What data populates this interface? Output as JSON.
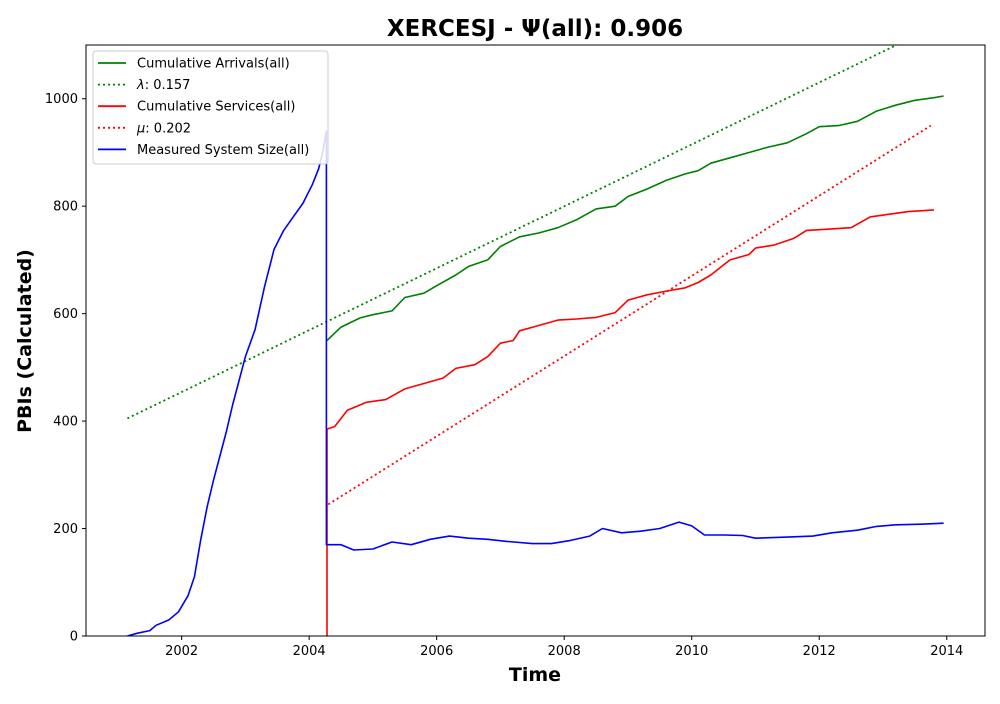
{
  "chart_data": {
    "type": "line",
    "title": "XERCESJ -  Ψ(all): 0.906",
    "xlabel": "Time",
    "ylabel": "PBIs (Calculated)",
    "xlim": [
      2000.5,
      2014.6
    ],
    "ylim": [
      0,
      1100
    ],
    "x_ticks": [
      2002,
      2004,
      2006,
      2008,
      2010,
      2012,
      2014
    ],
    "y_ticks": [
      0,
      200,
      400,
      600,
      800,
      1000
    ],
    "grid": false,
    "legend_placement": "top-left",
    "legend": [
      {
        "label": "Cumulative Arrivals(all)",
        "color": "#008000",
        "style": "solid"
      },
      {
        "label_symbol": "λ",
        "label_value": ": 0.157",
        "color": "#008000",
        "style": "dotted"
      },
      {
        "label": "Cumulative Services(all)",
        "color": "#ff0000",
        "style": "solid"
      },
      {
        "label_symbol": "μ",
        "label_value": ": 0.202",
        "color": "#ff0000",
        "style": "dotted"
      },
      {
        "label": "Measured System Size(all)",
        "color": "#0000ff",
        "style": "solid"
      }
    ],
    "series": [
      {
        "name": "Cumulative Arrivals(all)",
        "color": "#008000",
        "style": "solid",
        "points": [
          [
            2004.28,
            550
          ],
          [
            2004.5,
            575
          ],
          [
            2004.8,
            592
          ],
          [
            2005.0,
            598
          ],
          [
            2005.3,
            605
          ],
          [
            2005.5,
            630
          ],
          [
            2005.8,
            638
          ],
          [
            2006.0,
            652
          ],
          [
            2006.3,
            672
          ],
          [
            2006.5,
            688
          ],
          [
            2006.8,
            700
          ],
          [
            2007.0,
            725
          ],
          [
            2007.3,
            743
          ],
          [
            2007.6,
            750
          ],
          [
            2007.9,
            760
          ],
          [
            2008.2,
            775
          ],
          [
            2008.5,
            795
          ],
          [
            2008.8,
            800
          ],
          [
            2009.0,
            818
          ],
          [
            2009.3,
            832
          ],
          [
            2009.6,
            848
          ],
          [
            2009.9,
            860
          ],
          [
            2010.1,
            866
          ],
          [
            2010.3,
            880
          ],
          [
            2010.6,
            890
          ],
          [
            2010.9,
            900
          ],
          [
            2011.2,
            910
          ],
          [
            2011.5,
            918
          ],
          [
            2011.8,
            935
          ],
          [
            2012.0,
            948
          ],
          [
            2012.3,
            950
          ],
          [
            2012.6,
            958
          ],
          [
            2012.9,
            977
          ],
          [
            2013.2,
            988
          ],
          [
            2013.5,
            997
          ],
          [
            2013.8,
            1002
          ],
          [
            2013.95,
            1005
          ]
        ]
      },
      {
        "name": "λ: 0.157",
        "color": "#008000",
        "style": "dotted",
        "points": [
          [
            2001.15,
            405
          ],
          [
            2013.3,
            1105
          ]
        ]
      },
      {
        "name": "Cumulative Services(all)",
        "color": "#ff0000",
        "style": "solid",
        "points": [
          [
            2004.28,
            0
          ],
          [
            2004.28,
            385
          ],
          [
            2004.4,
            390
          ],
          [
            2004.6,
            420
          ],
          [
            2004.9,
            435
          ],
          [
            2005.2,
            440
          ],
          [
            2005.5,
            460
          ],
          [
            2005.8,
            470
          ],
          [
            2006.1,
            480
          ],
          [
            2006.3,
            498
          ],
          [
            2006.6,
            505
          ],
          [
            2006.8,
            520
          ],
          [
            2007.0,
            545
          ],
          [
            2007.2,
            550
          ],
          [
            2007.3,
            568
          ],
          [
            2007.6,
            578
          ],
          [
            2007.9,
            588
          ],
          [
            2008.2,
            590
          ],
          [
            2008.5,
            593
          ],
          [
            2008.8,
            602
          ],
          [
            2009.0,
            625
          ],
          [
            2009.3,
            635
          ],
          [
            2009.6,
            642
          ],
          [
            2009.9,
            648
          ],
          [
            2010.1,
            658
          ],
          [
            2010.3,
            672
          ],
          [
            2010.6,
            700
          ],
          [
            2010.9,
            710
          ],
          [
            2011.0,
            722
          ],
          [
            2011.3,
            728
          ],
          [
            2011.6,
            740
          ],
          [
            2011.8,
            755
          ],
          [
            2012.1,
            757
          ],
          [
            2012.5,
            760
          ],
          [
            2012.8,
            780
          ],
          [
            2013.1,
            785
          ],
          [
            2013.4,
            790
          ],
          [
            2013.8,
            793
          ]
        ]
      },
      {
        "name": "μ: 0.202",
        "color": "#ff0000",
        "style": "dotted",
        "points": [
          [
            2004.3,
            245
          ],
          [
            2013.75,
            950
          ]
        ]
      },
      {
        "name": "Measured System Size(all)",
        "color": "#0000ff",
        "style": "solid",
        "points": [
          [
            2001.15,
            0
          ],
          [
            2001.3,
            5
          ],
          [
            2001.5,
            10
          ],
          [
            2001.6,
            20
          ],
          [
            2001.8,
            30
          ],
          [
            2001.95,
            45
          ],
          [
            2002.1,
            75
          ],
          [
            2002.2,
            110
          ],
          [
            2002.3,
            180
          ],
          [
            2002.4,
            240
          ],
          [
            2002.5,
            290
          ],
          [
            2002.6,
            335
          ],
          [
            2002.7,
            380
          ],
          [
            2002.8,
            430
          ],
          [
            2002.9,
            475
          ],
          [
            2003.0,
            520
          ],
          [
            2003.15,
            570
          ],
          [
            2003.3,
            650
          ],
          [
            2003.45,
            720
          ],
          [
            2003.6,
            755
          ],
          [
            2003.75,
            780
          ],
          [
            2003.9,
            805
          ],
          [
            2004.05,
            840
          ],
          [
            2004.15,
            870
          ],
          [
            2004.22,
            905
          ],
          [
            2004.27,
            940
          ],
          [
            2004.27,
            170
          ],
          [
            2004.5,
            170
          ],
          [
            2004.7,
            160
          ],
          [
            2005.0,
            162
          ],
          [
            2005.3,
            175
          ],
          [
            2005.6,
            170
          ],
          [
            2005.9,
            180
          ],
          [
            2006.2,
            186
          ],
          [
            2006.5,
            182
          ],
          [
            2006.8,
            180
          ],
          [
            2007.1,
            176
          ],
          [
            2007.5,
            172
          ],
          [
            2007.8,
            172
          ],
          [
            2008.1,
            178
          ],
          [
            2008.4,
            186
          ],
          [
            2008.6,
            200
          ],
          [
            2008.9,
            192
          ],
          [
            2009.2,
            195
          ],
          [
            2009.5,
            200
          ],
          [
            2009.8,
            212
          ],
          [
            2010.0,
            205
          ],
          [
            2010.2,
            188
          ],
          [
            2010.5,
            188
          ],
          [
            2010.8,
            187
          ],
          [
            2011.0,
            182
          ],
          [
            2011.5,
            184
          ],
          [
            2011.9,
            186
          ],
          [
            2012.2,
            192
          ],
          [
            2012.6,
            197
          ],
          [
            2012.9,
            204
          ],
          [
            2013.2,
            207
          ],
          [
            2013.6,
            208
          ],
          [
            2013.95,
            210
          ]
        ]
      }
    ]
  }
}
